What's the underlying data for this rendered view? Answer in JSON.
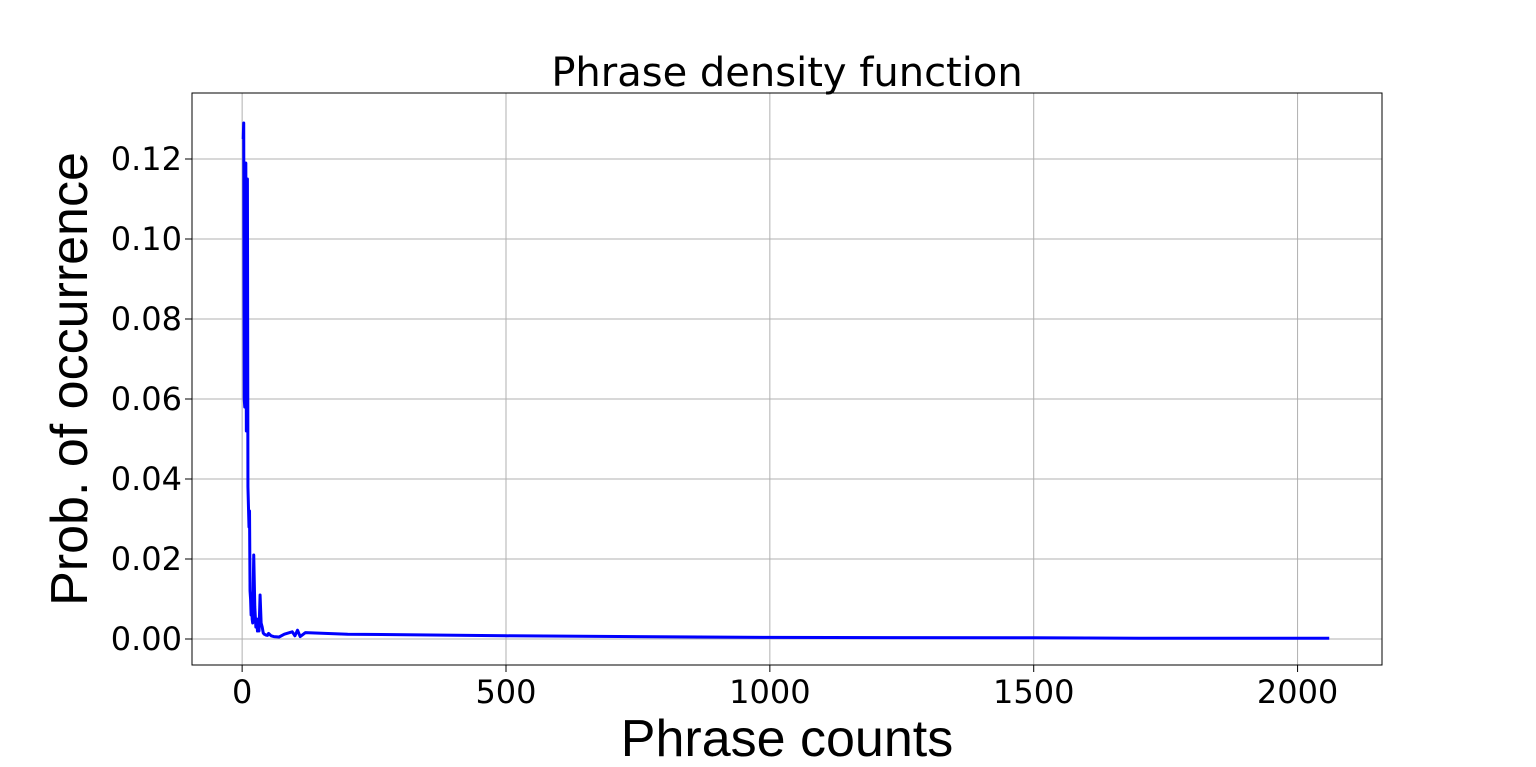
{
  "chart_data": {
    "type": "line",
    "title": "Phrase density function",
    "xlabel": "Phrase counts",
    "ylabel": "Prob. of occurrence",
    "xlim": [
      -95,
      2160
    ],
    "ylim": [
      -0.0065,
      0.1365
    ],
    "xticks": [
      0,
      500,
      1000,
      1500,
      2000
    ],
    "xtick_labels": [
      "0",
      "500",
      "1000",
      "1500",
      "2000"
    ],
    "yticks": [
      0.0,
      0.02,
      0.04,
      0.06,
      0.08,
      0.1,
      0.12
    ],
    "ytick_labels": [
      "0.00",
      "0.02",
      "0.04",
      "0.06",
      "0.08",
      "0.10",
      "0.12"
    ],
    "grid": true,
    "series": [
      {
        "color": "#0000ff",
        "x": [
          2,
          3,
          4,
          5,
          6,
          7,
          8,
          9,
          10,
          11,
          12,
          13,
          14,
          15,
          16,
          17,
          18,
          19,
          20,
          22,
          24,
          26,
          28,
          29,
          30,
          32,
          34,
          36,
          38,
          40,
          42,
          45,
          48,
          50,
          55,
          60,
          70,
          80,
          95,
          100,
          105,
          110,
          120,
          200,
          500,
          1000,
          1500,
          1700,
          2000,
          2060
        ],
        "y": [
          0.125,
          0.129,
          0.06,
          0.058,
          0.118,
          0.119,
          0.052,
          0.11,
          0.115,
          0.038,
          0.033,
          0.028,
          0.032,
          0.012,
          0.01,
          0.006,
          0.011,
          0.005,
          0.004,
          0.021,
          0.008,
          0.003,
          0.005,
          0.002,
          0.003,
          0.002,
          0.011,
          0.004,
          0.003,
          0.0015,
          0.0012,
          0.001,
          0.0009,
          0.0014,
          0.0008,
          0.0006,
          0.0005,
          0.0012,
          0.0018,
          0.0008,
          0.0022,
          0.0006,
          0.0016,
          0.0012,
          0.0008,
          0.0004,
          0.0003,
          0.0002,
          0.0002,
          0.0002
        ]
      }
    ]
  }
}
